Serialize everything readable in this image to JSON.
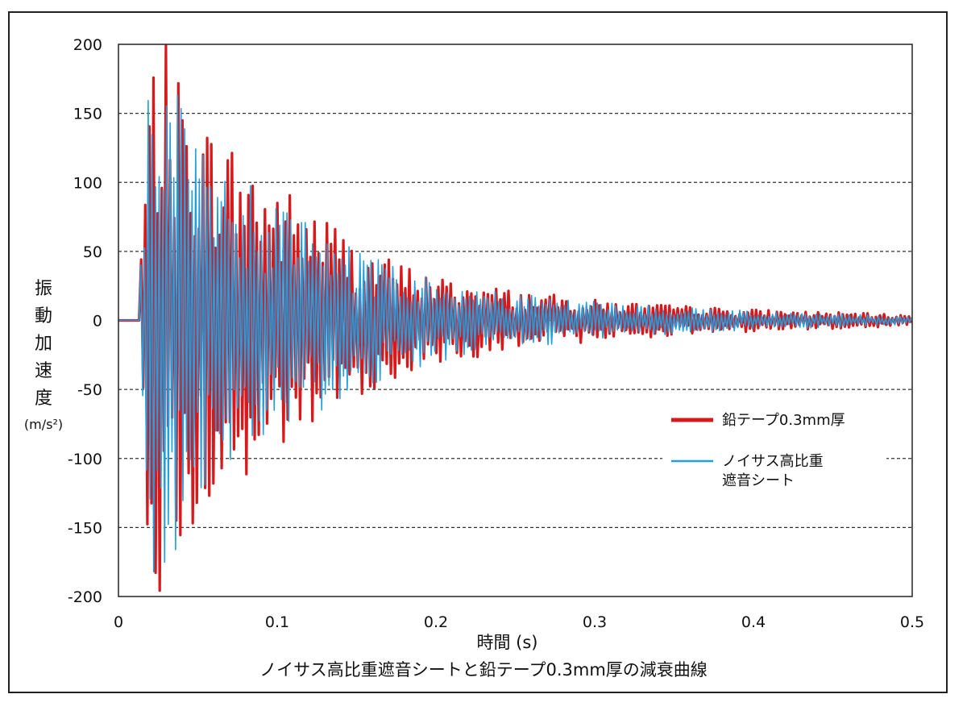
{
  "chart_data": {
    "type": "line",
    "title": "",
    "caption": "ノイサス高比重遮音シートと鉛テープ0.3mm厚の減衰曲線",
    "xlabel": "時間 (s)",
    "ylabel": "振動加速度",
    "ylabel_unit": "(m/s²)",
    "xlim": [
      0,
      0.5
    ],
    "ylim": [
      -200,
      200
    ],
    "xticks": [
      "0",
      "0.1",
      "0.2",
      "0.3",
      "0.4",
      "0.5"
    ],
    "yticks": [
      "200",
      "150",
      "100",
      "50",
      "0",
      "-50",
      "-100",
      "-150",
      "-200"
    ],
    "grid": "horizontal-dashed",
    "legend_position": "right",
    "series": [
      {
        "name": "鉛テープ0.3mm厚",
        "color": "#d7191c",
        "line_width": "thick",
        "onset_time": 0.013,
        "envelope": {
          "t": [
            0.013,
            0.02,
            0.03,
            0.05,
            0.08,
            0.1,
            0.13,
            0.15,
            0.2,
            0.25,
            0.3,
            0.35,
            0.4,
            0.45,
            0.5
          ],
          "amplitude": [
            30,
            190,
            200,
            150,
            125,
            100,
            80,
            55,
            32,
            22,
            15,
            11,
            8,
            6,
            4
          ]
        },
        "oscillation_period_s": 0.0026
      },
      {
        "name": "ノイサス高比重\n遮音シート",
        "name_lines": [
          "ノイサス高比重",
          "遮音シート"
        ],
        "color": "#1f9fe0",
        "line_width": "thin",
        "onset_time": 0.013,
        "envelope": {
          "t": [
            0.013,
            0.02,
            0.03,
            0.05,
            0.08,
            0.1,
            0.13,
            0.15,
            0.2,
            0.25,
            0.3,
            0.35,
            0.4,
            0.45,
            0.5
          ],
          "amplitude": [
            30,
            200,
            195,
            125,
            100,
            85,
            65,
            50,
            30,
            20,
            14,
            10,
            7,
            5,
            3
          ]
        },
        "oscillation_period_s": 0.0023
      }
    ]
  }
}
